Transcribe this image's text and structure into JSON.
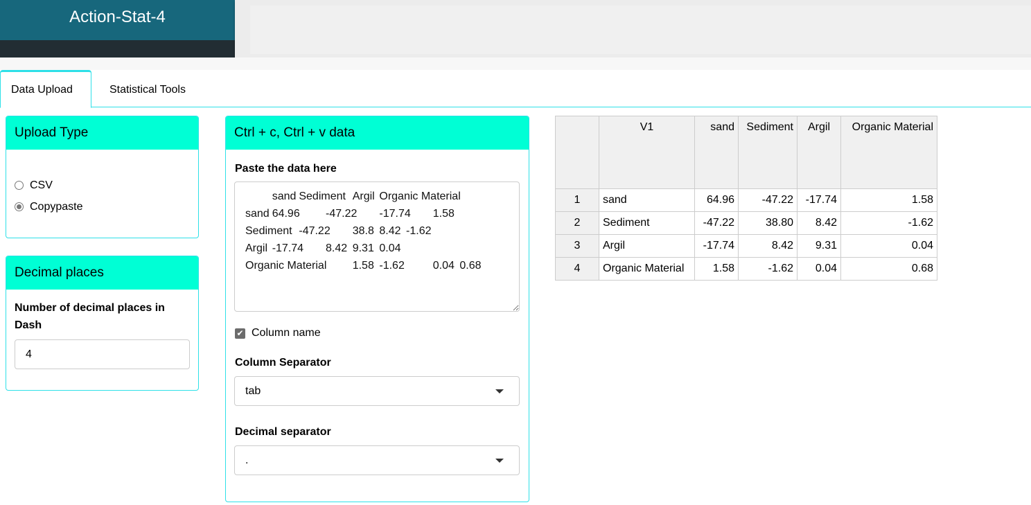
{
  "app": {
    "title": "Action-Stat-4"
  },
  "tabs": [
    {
      "label": "Data Upload",
      "active": true
    },
    {
      "label": "Statistical Tools",
      "active": false
    }
  ],
  "upload_type": {
    "title": "Upload Type",
    "options": [
      {
        "label": "CSV",
        "selected": false
      },
      {
        "label": "Copypaste",
        "selected": true
      }
    ]
  },
  "decimal": {
    "title": "Decimal places",
    "label": "Number of decimal places in Dash",
    "value": "4"
  },
  "paste": {
    "title": "Ctrl + c, Ctrl + v data",
    "label": "Paste the data here",
    "text": "\tsand\tSediment\tArgil\tOrganic Material\nsand\t64.96\t-47.22\t-17.74\t1.58\nSediment\t-47.22\t38.8\t8.42\t-1.62\nArgil\t-17.74\t8.42\t9.31\t0.04\nOrganic Material\t1.58\t-1.62\t0.04\t0.68",
    "column_name_label": "Column name",
    "column_name_checked": true,
    "col_sep_label": "Column Separator",
    "col_sep_value": "tab",
    "dec_sep_label": "Decimal separator",
    "dec_sep_value": "."
  },
  "table": {
    "headers": [
      "",
      "V1",
      "sand",
      "Sediment",
      "Argil",
      "Organic Material"
    ],
    "rows": [
      [
        "1",
        "sand",
        "64.96",
        "-47.22",
        "-17.74",
        "1.58"
      ],
      [
        "2",
        "Sediment",
        "-47.22",
        "38.80",
        "8.42",
        "-1.62"
      ],
      [
        "3",
        "Argil",
        "-17.74",
        "8.42",
        "9.31",
        "0.04"
      ],
      [
        "4",
        "Organic Material",
        "1.58",
        "-1.62",
        "0.04",
        "0.68"
      ]
    ]
  },
  "colors": {
    "header": "#17677c",
    "box_header": "#00ffd5",
    "accent": "#2de0e8"
  }
}
